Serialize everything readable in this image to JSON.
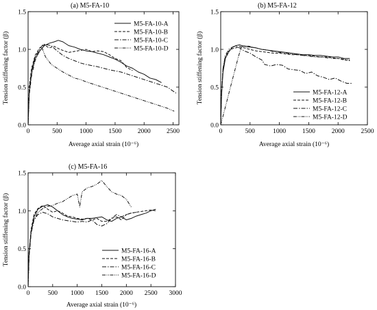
{
  "figure": {
    "panels": [
      "(a) M5-FA-10",
      "(b) M5-FA-12",
      "(c) M5-FA-16"
    ]
  },
  "chart_data": [
    {
      "type": "line",
      "title": "(a) M5-FA-10",
      "xlabel": "Average axial strain (10⁻⁶)",
      "ylabel": "Tension stiffening factor (β)",
      "xlim": [
        0,
        2600
      ],
      "ylim": [
        0,
        1.5
      ],
      "xticks": [
        0,
        500,
        1000,
        1500,
        2000,
        2500
      ],
      "yticks": [
        0.0,
        0.5,
        1.0,
        1.5
      ],
      "legend_position": "top-right",
      "series": [
        {
          "name": "M5-FA-10-A",
          "dash": "",
          "x": [
            0,
            20,
            60,
            120,
            200,
            280,
            360,
            450,
            520,
            600,
            700,
            800,
            900,
            1000,
            1100,
            1200,
            1300,
            1400,
            1500,
            1600,
            1700,
            1800,
            1900,
            2000,
            2100,
            2200,
            2300
          ],
          "y": [
            0,
            0.45,
            0.7,
            0.88,
            0.98,
            1.05,
            1.08,
            1.1,
            1.12,
            1.1,
            1.05,
            1.03,
            1.0,
            0.98,
            0.97,
            0.95,
            0.93,
            0.9,
            0.87,
            0.83,
            0.78,
            0.75,
            0.7,
            0.67,
            0.62,
            0.6,
            0.56
          ]
        },
        {
          "name": "M5-FA-10-B",
          "dash": "4,2",
          "x": [
            0,
            20,
            60,
            120,
            200,
            280,
            360,
            450,
            550,
            700,
            850,
            1000,
            1100,
            1200,
            1300,
            1400,
            1500,
            1600,
            1700,
            1800
          ],
          "y": [
            0,
            0.5,
            0.75,
            0.92,
            1.02,
            1.06,
            1.02,
            1.04,
            1.0,
            0.96,
            0.98,
            1.0,
            0.97,
            0.98,
            0.97,
            0.93,
            0.88,
            0.85,
            0.76,
            0.72
          ]
        },
        {
          "name": "M5-FA-10-C",
          "dash": "6,2,1.5,2",
          "x": [
            0,
            20,
            60,
            120,
            200,
            260,
            330,
            400,
            500,
            600,
            700,
            800,
            900,
            1000,
            1200,
            1400,
            1600,
            1800,
            2000,
            2200,
            2400,
            2550
          ],
          "y": [
            0,
            0.45,
            0.72,
            0.9,
            1.0,
            1.07,
            1.06,
            1.05,
            0.98,
            0.92,
            0.88,
            0.85,
            0.82,
            0.8,
            0.77,
            0.73,
            0.7,
            0.65,
            0.6,
            0.55,
            0.5,
            0.42
          ]
        },
        {
          "name": "M5-FA-10-D",
          "dash": "5,1.5,1,1.5,1,1.5",
          "x": [
            0,
            20,
            60,
            120,
            180,
            240,
            300,
            400,
            500,
            600,
            700,
            800,
            900,
            1000,
            1200,
            1400,
            1600,
            1800,
            2000,
            2200,
            2400,
            2520
          ],
          "y": [
            0,
            0.4,
            0.65,
            0.85,
            0.95,
            1.02,
            0.9,
            0.8,
            0.75,
            0.7,
            0.66,
            0.62,
            0.6,
            0.57,
            0.52,
            0.47,
            0.42,
            0.37,
            0.32,
            0.27,
            0.22,
            0.18
          ]
        }
      ]
    },
    {
      "type": "line",
      "title": "(b) M5-FA-12",
      "xlabel": "Average axial strain (10⁻⁶)",
      "ylabel": "Tension stiffening factor (β)",
      "xlim": [
        0,
        2500
      ],
      "ylim": [
        0,
        1.5
      ],
      "xticks": [
        0,
        500,
        1000,
        1500,
        2000,
        2500
      ],
      "yticks": [
        0.0,
        0.5,
        1.0,
        1.5
      ],
      "legend_position": "bottom-right",
      "series": [
        {
          "name": "M5-FA-12-A",
          "dash": "",
          "x": [
            0,
            15,
            40,
            80,
            140,
            200,
            260,
            320,
            400,
            500,
            600,
            700,
            800,
            900,
            1000,
            1100,
            1200,
            1300,
            1400,
            1500,
            1600,
            1700,
            1800,
            1900,
            2000,
            2100,
            2200
          ],
          "y": [
            0,
            0.4,
            0.7,
            0.88,
            0.97,
            1.03,
            1.05,
            1.06,
            1.04,
            1.03,
            1.02,
            1.0,
            0.99,
            0.98,
            0.97,
            0.96,
            0.95,
            0.94,
            0.93,
            0.93,
            0.92,
            0.92,
            0.91,
            0.9,
            0.9,
            0.88,
            0.88
          ]
        },
        {
          "name": "M5-FA-12-B",
          "dash": "4,2",
          "x": [
            0,
            15,
            40,
            80,
            140,
            200,
            260,
            320,
            400,
            500,
            600,
            700,
            800,
            900,
            1000,
            1100,
            1200,
            1300,
            1400,
            1500,
            1600,
            1700,
            1800,
            1900,
            2000,
            2100,
            2200
          ],
          "y": [
            0,
            0.45,
            0.75,
            0.9,
            0.98,
            1.01,
            1.02,
            1.04,
            1.02,
            1.0,
            0.98,
            0.97,
            0.96,
            0.95,
            0.95,
            0.94,
            0.93,
            0.93,
            0.92,
            0.92,
            0.91,
            0.9,
            0.9,
            0.89,
            0.88,
            0.86,
            0.85
          ]
        },
        {
          "name": "M5-FA-12-C",
          "dash": "6,2,1.5,2",
          "x": [
            0,
            15,
            40,
            80,
            140,
            200,
            260,
            320,
            400,
            500,
            600,
            700,
            750,
            850,
            950,
            1050,
            1150,
            1250,
            1350,
            1450,
            1550,
            1650,
            1750,
            1850,
            1950,
            2050,
            2150,
            2250
          ],
          "y": [
            0,
            0.45,
            0.75,
            0.92,
            1.0,
            1.03,
            1.04,
            1.02,
            0.98,
            0.95,
            0.9,
            0.86,
            0.8,
            0.78,
            0.8,
            0.79,
            0.74,
            0.73,
            0.72,
            0.68,
            0.7,
            0.65,
            0.63,
            0.6,
            0.62,
            0.58,
            0.55,
            0.55
          ]
        },
        {
          "name": "M5-FA-12-D",
          "dash": "5,1.5,1,1.5,1,1.5",
          "x": [
            0,
            50,
            100,
            150,
            200,
            250,
            300,
            350,
            400,
            500,
            600,
            700,
            800,
            900,
            1000,
            1100,
            1200,
            1300,
            1400,
            1500,
            1600,
            1700,
            1800,
            1900,
            2000,
            2100,
            2200
          ],
          "y": [
            0,
            0.15,
            0.3,
            0.45,
            0.6,
            0.75,
            0.9,
            1.03,
            1.05,
            1.04,
            1.02,
            1.0,
            0.99,
            0.97,
            0.96,
            0.95,
            0.94,
            0.93,
            0.92,
            0.91,
            0.9,
            0.9,
            0.89,
            0.88,
            0.88,
            0.87,
            0.86
          ]
        }
      ]
    },
    {
      "type": "line",
      "title": "(c) M5-FA-16",
      "xlabel": "Average axial strain (10⁻⁶)",
      "ylabel": "Tension stiffening factor (β)",
      "xlim": [
        0,
        3000
      ],
      "ylim": [
        0,
        1.5
      ],
      "xticks": [
        0,
        500,
        1000,
        1500,
        2000,
        2500,
        3000
      ],
      "yticks": [
        0.0,
        0.5,
        1.0,
        1.5
      ],
      "legend_position": "bottom-right",
      "series": [
        {
          "name": "M5-FA-16-A",
          "dash": "",
          "x": [
            0,
            20,
            60,
            120,
            200,
            300,
            400,
            500,
            600,
            700,
            800,
            900,
            1000,
            1100,
            1200,
            1300,
            1400,
            1500,
            1600,
            1700,
            1800,
            1900,
            2000,
            2100,
            2200,
            2300,
            2400,
            2500,
            2600
          ],
          "y": [
            0,
            0.45,
            0.72,
            0.92,
            1.02,
            1.06,
            1.08,
            1.05,
            1.0,
            0.95,
            0.92,
            0.9,
            0.89,
            0.88,
            0.9,
            0.9,
            0.91,
            0.92,
            0.88,
            0.86,
            0.9,
            0.92,
            0.88,
            0.9,
            0.93,
            0.95,
            0.97,
            1.0,
            1.02
          ]
        },
        {
          "name": "M5-FA-16-B",
          "dash": "4,2",
          "x": [
            0,
            20,
            60,
            120,
            200,
            300,
            400,
            500,
            600,
            700,
            800,
            900,
            1000,
            1100,
            1200,
            1300,
            1400,
            1500,
            1600,
            1700,
            1800,
            1900,
            2000,
            2100,
            2200,
            2300,
            2400,
            2500,
            2600
          ],
          "y": [
            0,
            0.45,
            0.75,
            0.95,
            1.03,
            1.07,
            1.02,
            0.98,
            1.0,
            0.97,
            0.93,
            0.92,
            0.9,
            0.89,
            0.9,
            0.88,
            0.9,
            0.86,
            0.86,
            0.9,
            0.92,
            0.88,
            0.95,
            0.97,
            0.98,
            0.99,
            1.0,
            1.01,
            1.0
          ]
        },
        {
          "name": "M5-FA-16-C",
          "dash": "6,2,1.5,2",
          "x": [
            0,
            20,
            60,
            120,
            200,
            300,
            400,
            500,
            600,
            700,
            800,
            900,
            1000,
            1100,
            1200,
            1300,
            1400,
            1500,
            1600,
            1700,
            1800,
            1900,
            2000,
            2100,
            2200
          ],
          "y": [
            0,
            0.4,
            0.7,
            0.88,
            0.95,
            0.98,
            0.96,
            0.92,
            0.9,
            0.88,
            0.87,
            0.86,
            0.85,
            0.86,
            0.85,
            0.88,
            0.82,
            0.8,
            0.83,
            0.9,
            0.95,
            0.92,
            0.95,
            0.97,
            0.98
          ]
        },
        {
          "name": "M5-FA-16-D",
          "dash": "5,1.5,1,1.5,1,1.5",
          "x": [
            0,
            20,
            60,
            120,
            200,
            300,
            400,
            500,
            600,
            700,
            800,
            900,
            1000,
            1050,
            1100,
            1200,
            1300,
            1400,
            1500,
            1600,
            1700,
            1800,
            1900,
            2000,
            2100
          ],
          "y": [
            0,
            0.4,
            0.7,
            0.88,
            0.98,
            1.03,
            1.06,
            1.07,
            1.1,
            1.12,
            1.16,
            1.2,
            1.22,
            1.05,
            1.25,
            1.3,
            1.32,
            1.35,
            1.4,
            1.32,
            1.25,
            1.22,
            1.2,
            1.15,
            1.05
          ]
        }
      ]
    }
  ]
}
